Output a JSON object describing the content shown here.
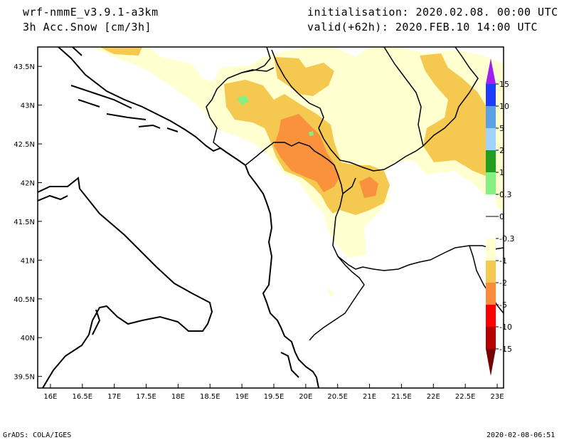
{
  "header": {
    "model": "wrf-nmmE_v3.9.1-a3km",
    "field": "3h Acc.Snow [cm/3h]",
    "init": "initialisation: 2020.02.08.  00:00 UTC",
    "valid": "valid(+62h): 2020.FEB.10 14:00 UTC"
  },
  "map": {
    "lon_ticks": [
      "16E",
      "16.5E",
      "17E",
      "17.5E",
      "18E",
      "18.5E",
      "19E",
      "19.5E",
      "20E",
      "20.5E",
      "21E",
      "21.5E",
      "22E",
      "22.5E",
      "23E"
    ],
    "lat_ticks": [
      "43.5N",
      "43N",
      "42.5N",
      "42N",
      "41.5N",
      "41N",
      "40.5N",
      "40N",
      "39.5N"
    ],
    "lon_range": [
      15.8,
      23.1
    ],
    "lat_range": [
      39.35,
      43.75
    ]
  },
  "legend": {
    "labels": [
      "15",
      "10",
      "5",
      "2",
      "1",
      "0.3",
      "0",
      "-0.3",
      "-1",
      "-2",
      "-5",
      "-10",
      "-15"
    ],
    "colors": {
      "violet": "#a020f0",
      "blue": "#1e3cff",
      "mid_blue": "#5aa0e6",
      "light_blue": "#a0d2ff",
      "green": "#1ea01e",
      "light_green": "#82f082",
      "cream": "#ffffd0",
      "yellow_orange": "#f5c850",
      "orange": "#fa8c3c",
      "red": "#fa0000",
      "dark_red": "#b40000",
      "maroon": "#780000"
    }
  },
  "footer": {
    "left": "GrADS: COLA/IGES",
    "right": "2020-02-08-06:51"
  }
}
